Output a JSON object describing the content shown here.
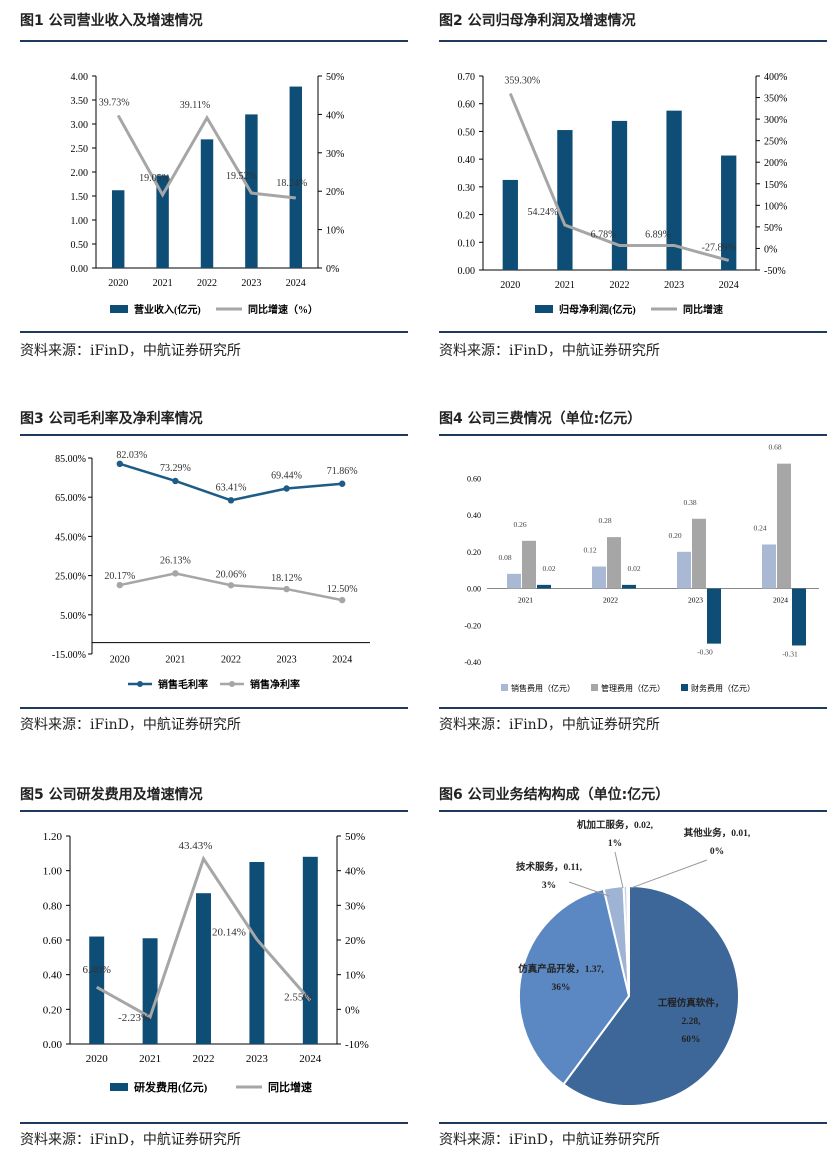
{
  "colors": {
    "bar": "#0e4d75",
    "line": "#a6a6a6",
    "rule": "#1f3a5f"
  },
  "source_label": "资料来源：iFinD，中航证券研究所",
  "chart_data": [
    {
      "type": "bar",
      "title": "图1  公司营业收入及增速情况",
      "categories": [
        "2020",
        "2021",
        "2022",
        "2023",
        "2024"
      ],
      "y_ticks": [
        "0.00",
        "0.50",
        "1.00",
        "1.50",
        "2.00",
        "2.50",
        "3.00",
        "3.50",
        "4.00"
      ],
      "y2_ticks": [
        "0%",
        "10%",
        "20%",
        "30%",
        "40%",
        "50%"
      ],
      "ylim": [
        0,
        4
      ],
      "y2lim": [
        0,
        50
      ],
      "series": [
        {
          "name": "营业收入(亿元)",
          "type": "bar",
          "values": [
            1.62,
            1.93,
            2.68,
            3.2,
            3.78
          ]
        },
        {
          "name": "同比增速（%）",
          "type": "line",
          "axis": "right",
          "values": [
            39.73,
            19.05,
            39.11,
            19.52,
            18.24
          ],
          "labels": [
            "39.73%",
            "19.05%",
            "39.11%",
            "19.52%",
            "18.24%"
          ]
        }
      ]
    },
    {
      "type": "bar",
      "title": "图2  公司归母净利润及增速情况",
      "categories": [
        "2020",
        "2021",
        "2022",
        "2023",
        "2024"
      ],
      "y_ticks": [
        "0.00",
        "0.10",
        "0.20",
        "0.30",
        "0.40",
        "0.50",
        "0.60",
        "0.70"
      ],
      "y2_ticks": [
        "-50%",
        "0%",
        "50%",
        "100%",
        "150%",
        "200%",
        "250%",
        "300%",
        "350%",
        "400%"
      ],
      "ylim": [
        0,
        0.7
      ],
      "y2lim": [
        -50,
        400
      ],
      "series": [
        {
          "name": "归母净利润(亿元)",
          "type": "bar",
          "values": [
            0.325,
            0.505,
            0.538,
            0.575,
            0.413
          ]
        },
        {
          "name": "同比增速",
          "type": "line",
          "axis": "right",
          "values": [
            359.3,
            54.24,
            6.78,
            6.89,
            -27.89
          ],
          "labels": [
            "359.30%",
            "54.24%",
            "6.78%",
            "6.89%",
            "-27.89%"
          ]
        }
      ]
    },
    {
      "type": "line",
      "title": "图3  公司毛利率及净利率情况",
      "categories": [
        "2020",
        "2021",
        "2022",
        "2023",
        "2024"
      ],
      "y_ticks": [
        "-15.00%",
        "5.00%",
        "25.00%",
        "45.00%",
        "65.00%",
        "85.00%"
      ],
      "ylim": [
        -15,
        85
      ],
      "series": [
        {
          "name": "销售毛利率",
          "color": "#1d5c86",
          "values": [
            82.03,
            73.29,
            63.41,
            69.44,
            71.86
          ],
          "labels": [
            "82.03%",
            "73.29%",
            "63.41%",
            "69.44%",
            "71.86%"
          ]
        },
        {
          "name": "销售净利率",
          "color": "#a6a6a6",
          "values": [
            20.17,
            26.13,
            20.06,
            18.12,
            12.5
          ],
          "labels": [
            "20.17%",
            "26.13%",
            "20.06%",
            "18.12%",
            "12.50%"
          ]
        }
      ]
    },
    {
      "type": "bar",
      "title": "图4  公司三费情况（单位:亿元）",
      "categories": [
        "2021",
        "2022",
        "2023",
        "2024"
      ],
      "y_ticks": [
        "-0.40",
        "-0.20",
        "0.00",
        "0.20",
        "0.40",
        "0.60"
      ],
      "ylim": [
        -0.4,
        0.7
      ],
      "series": [
        {
          "name": "销售费用（亿元）",
          "color": "#aab9d3",
          "values": [
            0.08,
            0.12,
            0.2,
            0.24
          ],
          "labels": [
            "0.08",
            "0.12",
            "0.20",
            "0.24"
          ]
        },
        {
          "name": "管理费用（亿元）",
          "color": "#a6a6a6",
          "values": [
            0.26,
            0.28,
            0.38,
            0.68
          ],
          "labels": [
            "0.26",
            "0.28",
            "0.38",
            "0.68"
          ]
        },
        {
          "name": "财务费用（亿元）",
          "color": "#0e4d75",
          "values": [
            0.02,
            0.02,
            -0.3,
            -0.31
          ],
          "labels": [
            "0.02",
            "0.02",
            "-0.30",
            "-0.31"
          ]
        }
      ]
    },
    {
      "type": "bar",
      "title": "图5  公司研发费用及增速情况",
      "categories": [
        "2020",
        "2021",
        "2022",
        "2023",
        "2024"
      ],
      "y_ticks": [
        "0.00",
        "0.20",
        "0.40",
        "0.60",
        "0.80",
        "1.00",
        "1.20"
      ],
      "y2_ticks": [
        "-10%",
        "0%",
        "10%",
        "20%",
        "30%",
        "40%",
        "50%"
      ],
      "ylim": [
        0,
        1.2
      ],
      "y2lim": [
        -10,
        50
      ],
      "series": [
        {
          "name": "研发费用(亿元)",
          "type": "bar",
          "values": [
            0.62,
            0.61,
            0.87,
            1.05,
            1.08
          ]
        },
        {
          "name": "同比增速",
          "type": "line",
          "axis": "right",
          "values": [
            6.4,
            -2.23,
            43.43,
            20.14,
            2.55
          ],
          "labels": [
            "6.40%",
            "-2.23%",
            "43.43%",
            "20.14%",
            "2.55%"
          ]
        }
      ]
    },
    {
      "type": "pie",
      "title": "图6  公司业务结构构成（单位:亿元）",
      "slices": [
        {
          "name": "工程仿真软件",
          "value": 2.28,
          "pct": "60%",
          "color": "#3d6699"
        },
        {
          "name": "仿真产品开发",
          "value": 1.37,
          "pct": "36%",
          "color": "#5b88c2"
        },
        {
          "name": "技术服务",
          "value": 0.11,
          "pct": "3%",
          "color": "#9fb3d4"
        },
        {
          "name": "机加工服务",
          "value": 0.02,
          "pct": "1%",
          "color": "#c5d1e4"
        },
        {
          "name": "其他业务",
          "value": 0.01,
          "pct": "0%",
          "color": "#dde5f0"
        }
      ],
      "slice_labels": [
        [
          "工程仿真软件，",
          "2.28,",
          "60%"
        ],
        [
          "仿真产品开发，1.37,",
          "36%"
        ],
        [
          "技术服务，0.11,",
          "3%"
        ],
        [
          "机加工服务，0.02,",
          "1%"
        ],
        [
          "其他业务，0.01,",
          "0%"
        ]
      ]
    }
  ]
}
